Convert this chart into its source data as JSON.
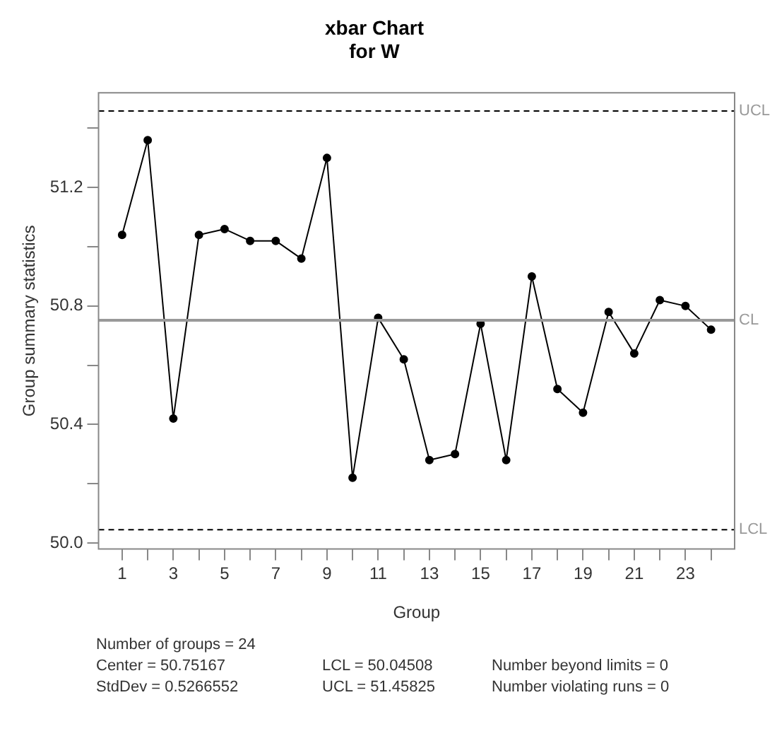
{
  "chart_data": {
    "type": "line",
    "title": "xbar Chart\nfor W",
    "xlabel": "Group",
    "ylabel": "Group summary statistics",
    "x": [
      1,
      2,
      3,
      4,
      5,
      6,
      7,
      8,
      9,
      10,
      11,
      12,
      13,
      14,
      15,
      16,
      17,
      18,
      19,
      20,
      21,
      22,
      23,
      24
    ],
    "series": [
      {
        "color": "#000000",
        "values": [
          51.04,
          51.36,
          50.42,
          51.04,
          51.06,
          51.02,
          51.02,
          50.96,
          51.3,
          50.22,
          50.76,
          50.62,
          50.28,
          50.3,
          50.74,
          50.28,
          50.9,
          50.52,
          50.44,
          50.78,
          50.64,
          50.82,
          50.8,
          50.72
        ]
      }
    ],
    "marker": "circle",
    "line_style": "solid",
    "grid": false,
    "legend": false,
    "xlim": [
      0.08,
      24.92
    ],
    "xticks": [
      1,
      {
        "value": 2,
        "label": null
      },
      3,
      {
        "value": 4,
        "label": null
      },
      5,
      {
        "value": 6,
        "label": null
      },
      7,
      {
        "value": 8,
        "label": null
      },
      9,
      {
        "value": 10,
        "label": null
      },
      11,
      {
        "value": 12,
        "label": null
      },
      13,
      {
        "value": 14,
        "label": null
      },
      15,
      {
        "value": 16,
        "label": null
      },
      17,
      {
        "value": 18,
        "label": null
      },
      19,
      {
        "value": 20,
        "label": null
      },
      21,
      {
        "value": 22,
        "label": null
      },
      23,
      {
        "value": 24,
        "label": null
      }
    ],
    "ylim": [
      49.98,
      51.52
    ],
    "yticks": [
      {
        "value": 50.0,
        "label": "50.0"
      },
      {
        "value": 50.2,
        "label": null
      },
      {
        "value": 50.4,
        "label": "50.4"
      },
      {
        "value": 50.6,
        "label": null
      },
      {
        "value": 50.8,
        "label": "50.8"
      },
      {
        "value": 51.0,
        "label": null
      },
      {
        "value": 51.2,
        "label": "51.2"
      },
      {
        "value": 51.4,
        "label": null
      }
    ],
    "ref_lines": [
      {
        "axis": "y",
        "value": 51.45825,
        "label": "UCL",
        "color": "#000000",
        "line_style": "dashed"
      },
      {
        "axis": "y",
        "value": 50.75167,
        "label": "CL",
        "color": "#999999",
        "line_style": "solid"
      },
      {
        "axis": "y",
        "value": 50.04508,
        "label": "LCL",
        "color": "#000000",
        "line_style": "dashed"
      }
    ],
    "annotations": [
      "Number of groups = 24",
      "Center = 50.75167",
      "StdDev = 0.5266552",
      "LCL = 50.04508",
      "UCL = 51.45825",
      "Number beyond limits = 0",
      "Number violating runs = 0"
    ]
  }
}
